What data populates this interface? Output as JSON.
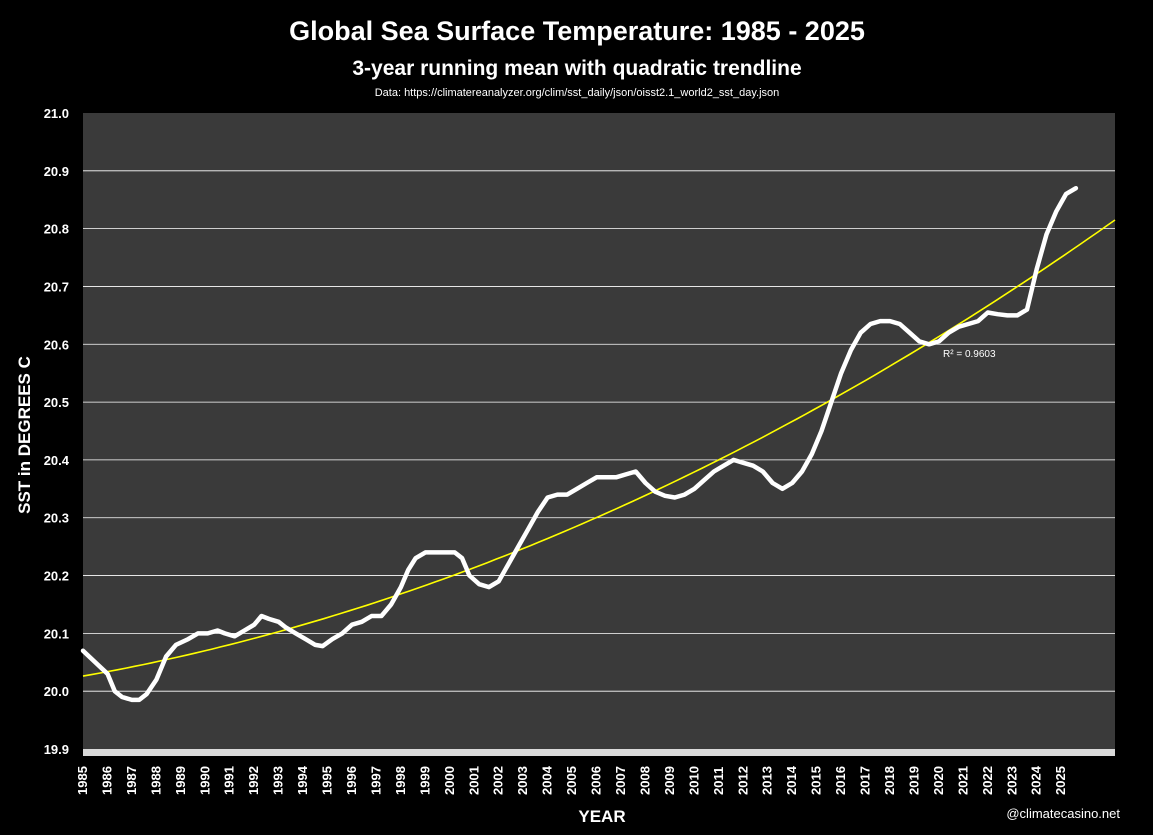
{
  "chart_data": {
    "type": "line",
    "title": "Global Sea Surface Temperature: 1985 - 2025",
    "subtitle": "3-year running mean with quadratic trendline",
    "source": "Data: https://climatereanalyzer.org/clim/sst_daily/json/oisst2.1_world2_sst_day.json",
    "xlabel": "YEAR",
    "ylabel": "SST in DEGREES C",
    "ylim": [
      19.9,
      21.0
    ],
    "xlim": [
      1985,
      2027.2
    ],
    "y_ticks": [
      "19.9",
      "20.0",
      "20.1",
      "20.2",
      "20.3",
      "20.4",
      "20.5",
      "20.6",
      "20.7",
      "20.8",
      "20.9",
      "21.0"
    ],
    "x_ticks": [
      "1985",
      "1986",
      "1987",
      "1988",
      "1989",
      "1990",
      "1991",
      "1992",
      "1993",
      "1994",
      "1995",
      "1996",
      "1997",
      "1998",
      "1999",
      "2000",
      "2001",
      "2002",
      "2003",
      "2004",
      "2005",
      "2006",
      "2007",
      "2008",
      "2009",
      "2010",
      "2011",
      "2012",
      "2013",
      "2014",
      "2015",
      "2016",
      "2017",
      "2018",
      "2019",
      "2020",
      "2021",
      "2022",
      "2023",
      "2024",
      "2025"
    ],
    "grid": true,
    "colors": {
      "background": "#000000",
      "plot_area": "#3a3a3a",
      "series": "#ffffff",
      "trend": "#ffff00",
      "grid": "#ffffff",
      "floor": "#d9d9d9"
    },
    "series": [
      {
        "x": [
          1985.0,
          1985.5,
          1986.0,
          1986.3,
          1986.6,
          1987.0,
          1987.3,
          1987.6,
          1988.0,
          1988.4,
          1988.8,
          1989.3,
          1989.7,
          1990.1,
          1990.5,
          1990.8,
          1991.2,
          1991.6,
          1992.0,
          1992.3,
          1992.6,
          1993.0,
          1993.3,
          1993.7,
          1994.1,
          1994.5,
          1994.8,
          1995.2,
          1995.6,
          1996.0,
          1996.4,
          1996.8,
          1997.2,
          1997.6,
          1998.0,
          1998.3,
          1998.6,
          1999.0,
          1999.4,
          1999.8,
          2000.2,
          2000.5,
          2000.8,
          2001.2,
          2001.6,
          2002.0,
          2002.4,
          2002.8,
          2003.2,
          2003.6,
          2004.0,
          2004.4,
          2004.8,
          2005.2,
          2005.6,
          2006.0,
          2006.4,
          2006.8,
          2007.2,
          2007.6,
          2008.0,
          2008.4,
          2008.8,
          2009.2,
          2009.6,
          2010.0,
          2010.4,
          2010.8,
          2011.2,
          2011.6,
          2012.0,
          2012.4,
          2012.8,
          2013.2,
          2013.6,
          2014.0,
          2014.4,
          2014.8,
          2015.2,
          2015.6,
          2016.0,
          2016.4,
          2016.8,
          2017.2,
          2017.6,
          2018.0,
          2018.4,
          2018.8,
          2019.2,
          2019.6,
          2020.0,
          2020.4,
          2020.8,
          2021.2,
          2021.6,
          2022.0,
          2022.4,
          2022.8,
          2023.2,
          2023.6,
          2024.0,
          2024.4,
          2024.8,
          2025.2,
          2025.6
        ],
        "values": [
          20.07,
          20.05,
          20.03,
          20.0,
          19.99,
          19.985,
          19.985,
          19.995,
          20.02,
          20.06,
          20.08,
          20.09,
          20.1,
          20.1,
          20.105,
          20.1,
          20.095,
          20.105,
          20.115,
          20.13,
          20.125,
          20.12,
          20.11,
          20.1,
          20.09,
          20.08,
          20.078,
          20.09,
          20.1,
          20.115,
          20.12,
          20.13,
          20.13,
          20.15,
          20.18,
          20.21,
          20.23,
          20.24,
          20.24,
          20.24,
          20.24,
          20.23,
          20.2,
          20.185,
          20.18,
          20.19,
          20.22,
          20.25,
          20.28,
          20.31,
          20.335,
          20.34,
          20.34,
          20.35,
          20.36,
          20.37,
          20.37,
          20.37,
          20.375,
          20.38,
          20.36,
          20.345,
          20.338,
          20.335,
          20.34,
          20.35,
          20.365,
          20.38,
          20.39,
          20.4,
          20.395,
          20.39,
          20.38,
          20.36,
          20.35,
          20.36,
          20.38,
          20.41,
          20.45,
          20.5,
          20.55,
          20.59,
          20.62,
          20.635,
          20.64,
          20.64,
          20.635,
          20.62,
          20.605,
          20.6,
          20.605,
          20.62,
          20.63,
          20.635,
          20.64,
          20.655,
          20.652,
          20.65,
          20.65,
          20.66,
          20.73,
          20.79,
          20.83,
          20.86,
          20.87
        ]
      }
    ],
    "trendline": {
      "type": "quadratic",
      "start": 20.026,
      "x_at_start": 1985.0,
      "at_2002": 20.23,
      "end": 20.815,
      "x_at_end": 2027.2,
      "label": "R² = 0.9603"
    }
  },
  "watermark": "@climatecasino.net"
}
